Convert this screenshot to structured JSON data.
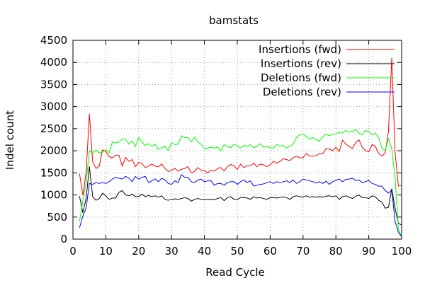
{
  "chart_data": {
    "type": "line",
    "title": "bamstats",
    "xlabel": "Read Cycle",
    "ylabel": "Indel count",
    "xlim": [
      0,
      100
    ],
    "ylim": [
      0,
      4500
    ],
    "xticks": [
      0,
      10,
      20,
      30,
      40,
      50,
      60,
      70,
      80,
      90,
      100
    ],
    "yticks": [
      0,
      500,
      1000,
      1500,
      2000,
      2500,
      3000,
      3500,
      4000,
      4500
    ],
    "grid": true,
    "legend_position": "top-right",
    "x": [
      2,
      3,
      4,
      5,
      6,
      7,
      8,
      9,
      10,
      11,
      12,
      13,
      14,
      15,
      16,
      17,
      18,
      19,
      20,
      21,
      22,
      23,
      24,
      25,
      26,
      27,
      28,
      29,
      30,
      31,
      32,
      33,
      34,
      35,
      36,
      37,
      38,
      39,
      40,
      41,
      42,
      43,
      44,
      45,
      46,
      47,
      48,
      49,
      50,
      51,
      52,
      53,
      54,
      55,
      56,
      57,
      58,
      59,
      60,
      61,
      62,
      63,
      64,
      65,
      66,
      67,
      68,
      69,
      70,
      71,
      72,
      73,
      74,
      75,
      76,
      77,
      78,
      79,
      80,
      81,
      82,
      83,
      84,
      85,
      86,
      87,
      88,
      89,
      90,
      91,
      92,
      93,
      94,
      95,
      96,
      97,
      98,
      99,
      100
    ],
    "series": [
      {
        "name": "Insertions (fwd)",
        "color": "#ff0000",
        "values": [
          1480,
          1000,
          1500,
          2830,
          1750,
          1600,
          1650,
          2020,
          1980,
          1870,
          1840,
          1900,
          1900,
          1650,
          1850,
          1760,
          1800,
          1640,
          1740,
          1710,
          1620,
          1650,
          1700,
          1650,
          1640,
          1700,
          1600,
          1530,
          1560,
          1600,
          1540,
          1580,
          1600,
          1640,
          1500,
          1530,
          1620,
          1560,
          1550,
          1500,
          1560,
          1540,
          1600,
          1620,
          1540,
          1640,
          1690,
          1660,
          1580,
          1700,
          1620,
          1660,
          1660,
          1720,
          1640,
          1700,
          1680,
          1640,
          1680,
          1760,
          1720,
          1760,
          1820,
          1800,
          1780,
          1840,
          1880,
          1840,
          1840,
          1940,
          1880,
          1880,
          1890,
          1940,
          1930,
          2050,
          2040,
          2000,
          2080,
          1980,
          2240,
          2150,
          2100,
          2050,
          2180,
          2250,
          2080,
          2000,
          1980,
          2140,
          2100,
          1940,
          1880,
          1950,
          2440,
          4100,
          1980,
          1200,
          1220
        ]
      },
      {
        "name": "Insertions (rev)",
        "color": "#000000",
        "values": [
          970,
          600,
          920,
          1640,
          960,
          880,
          920,
          1040,
          980,
          900,
          930,
          930,
          1060,
          1100,
          1000,
          980,
          1020,
          960,
          960,
          1020,
          960,
          990,
          960,
          980,
          950,
          980,
          900,
          880,
          900,
          910,
          900,
          920,
          940,
          920,
          860,
          900,
          920,
          900,
          900,
          900,
          900,
          890,
          920,
          940,
          870,
          940,
          960,
          900,
          900,
          940,
          940,
          930,
          900,
          960,
          930,
          940,
          920,
          900,
          940,
          940,
          930,
          940,
          960,
          940,
          900,
          960,
          980,
          960,
          950,
          980,
          950,
          960,
          950,
          960,
          950,
          970,
          980,
          960,
          980,
          900,
          960,
          980,
          950,
          920,
          970,
          1000,
          940,
          940,
          920,
          980,
          960,
          880,
          840,
          700,
          720,
          1140,
          700,
          360,
          320
        ]
      },
      {
        "name": "Deletions (fwd)",
        "color": "#00ff00",
        "values": [
          400,
          870,
          1300,
          2000,
          1940,
          2020,
          1950,
          1980,
          2020,
          1950,
          2200,
          2180,
          2200,
          2260,
          2270,
          2150,
          2220,
          2100,
          2300,
          2200,
          2120,
          2160,
          2100,
          2150,
          2030,
          2070,
          2100,
          2000,
          2180,
          2140,
          2150,
          2340,
          2300,
          2300,
          2200,
          2310,
          2200,
          2150,
          2050,
          2060,
          2080,
          2060,
          2080,
          2000,
          2140,
          2100,
          2070,
          2150,
          2100,
          2060,
          2120,
          2100,
          2140,
          2070,
          2100,
          2160,
          2080,
          2100,
          2070,
          2060,
          2150,
          2100,
          2120,
          2060,
          2100,
          2150,
          2300,
          2360,
          2380,
          2320,
          2260,
          2300,
          2250,
          2220,
          2320,
          2380,
          2340,
          2380,
          2380,
          2420,
          2400,
          2460,
          2420,
          2440,
          2480,
          2400,
          2360,
          2460,
          2430,
          2360,
          2400,
          2300,
          2060,
          2000,
          2280,
          2040,
          1400,
          240,
          50
        ]
      },
      {
        "name": "Deletions (rev)",
        "color": "#0000ff",
        "values": [
          260,
          520,
          700,
          1260,
          1240,
          1280,
          1260,
          1280,
          1260,
          1300,
          1360,
          1400,
          1380,
          1360,
          1420,
          1380,
          1300,
          1420,
          1360,
          1400,
          1420,
          1280,
          1320,
          1360,
          1300,
          1380,
          1340,
          1260,
          1240,
          1320,
          1280,
          1460,
          1400,
          1400,
          1300,
          1280,
          1340,
          1360,
          1300,
          1320,
          1320,
          1220,
          1260,
          1260,
          1220,
          1280,
          1300,
          1300,
          1240,
          1300,
          1340,
          1280,
          1320,
          1200,
          1220,
          1240,
          1250,
          1280,
          1300,
          1260,
          1300,
          1280,
          1300,
          1320,
          1280,
          1340,
          1260,
          1300,
          1360,
          1340,
          1320,
          1300,
          1270,
          1300,
          1260,
          1310,
          1240,
          1300,
          1330,
          1360,
          1300,
          1350,
          1360,
          1380,
          1330,
          1340,
          1280,
          1300,
          1330,
          1260,
          1240,
          1200,
          1200,
          1100,
          1040,
          1120,
          400,
          160,
          50
        ]
      }
    ]
  }
}
